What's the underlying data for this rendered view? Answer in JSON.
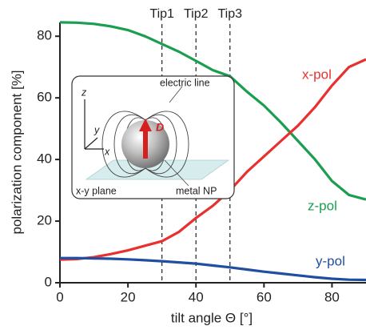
{
  "chart_data": {
    "type": "line",
    "x_label": "tilt angle Θ [°]",
    "y_label": "polarization component [%]",
    "x": [
      0,
      5,
      10,
      15,
      20,
      25,
      30,
      35,
      40,
      45,
      50,
      55,
      60,
      65,
      70,
      75,
      80,
      85,
      90
    ],
    "series": [
      {
        "name": "z-pol",
        "color": "#1a9e50",
        "values": [
          84.5,
          84.4,
          84,
          83.2,
          82,
          80,
          77.5,
          75,
          72,
          69,
          67,
          62,
          57.5,
          52,
          46,
          40,
          33,
          28.5,
          27
        ]
      },
      {
        "name": "x-pol",
        "color": "#e8312f",
        "values": [
          7.5,
          7.7,
          8.3,
          9.3,
          10.5,
          12,
          13.5,
          16.5,
          21,
          25,
          30,
          36,
          41,
          46,
          51,
          57,
          64,
          70,
          72.5
        ]
      },
      {
        "name": "y-pol",
        "color": "#1f4fa0",
        "values": [
          8,
          8,
          7.9,
          7.8,
          7.6,
          7.3,
          7,
          6.6,
          6.2,
          5.6,
          5,
          4.3,
          3.6,
          3,
          2.4,
          1.8,
          1.3,
          1,
          0.9
        ]
      }
    ],
    "xlim": [
      0,
      90
    ],
    "xticks": [
      0,
      20,
      40,
      60,
      80
    ],
    "ylim": [
      0,
      85
    ],
    "yticks": [
      0,
      20,
      40,
      60,
      80
    ],
    "vlines": [
      {
        "x": 30,
        "label": "Tip1"
      },
      {
        "x": 40,
        "label": "Tip2"
      },
      {
        "x": 50,
        "label": "Tip3"
      }
    ],
    "inset": {
      "electric_line": "electric line",
      "plane": "x-y plane",
      "particle": "metal NP",
      "dipole": "D",
      "axis_z": "z",
      "axis_y": "y",
      "axis_x": "x"
    }
  }
}
